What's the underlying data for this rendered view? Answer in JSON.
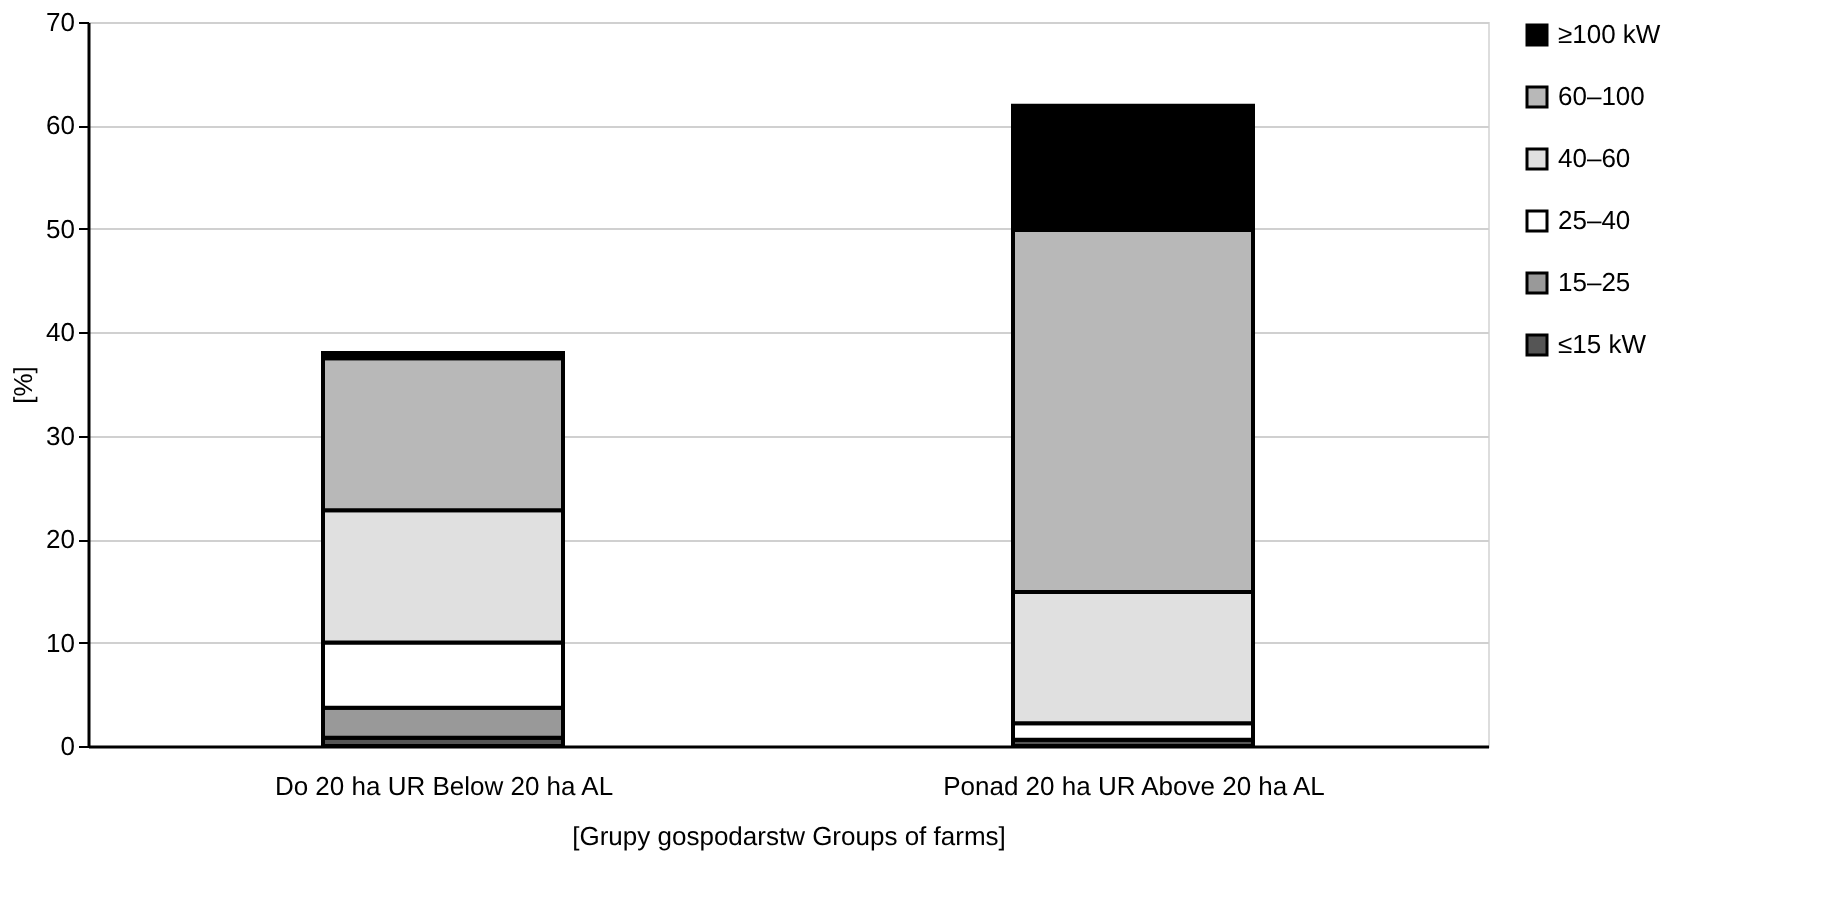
{
  "chart_data": {
    "type": "bar",
    "stacked": true,
    "xlabel": "[Grupy gospodarstw  Groups of farms]",
    "ylabel": "[%]",
    "categories": [
      "Do 20 ha UR  Below 20 ha AL",
      "Ponad 20 ha UR  Above 20 ha AL"
    ],
    "series": [
      {
        "name": "≤15 kW",
        "color": "#555555",
        "values": [
          0.8,
          0.6
        ]
      },
      {
        "name": "15–25",
        "color": "#999999",
        "values": [
          2.9,
          null
        ]
      },
      {
        "name": "25–40",
        "color": "#ffffff",
        "values": [
          6.3,
          1.6
        ]
      },
      {
        "name": "40–60",
        "color": "#e0e0e0",
        "values": [
          12.8,
          12.7
        ]
      },
      {
        "name": "60–100",
        "color": "#b8b8b8",
        "values": [
          14.7,
          35
        ]
      },
      {
        "name": "≥100 kW",
        "color": "#000000",
        "values": [
          0.5,
          12
        ]
      }
    ],
    "ylim": [
      0,
      70
    ],
    "yticks": [
      0,
      10,
      20,
      30,
      40,
      50,
      60,
      70
    ],
    "grid": "y",
    "legend": "right"
  }
}
